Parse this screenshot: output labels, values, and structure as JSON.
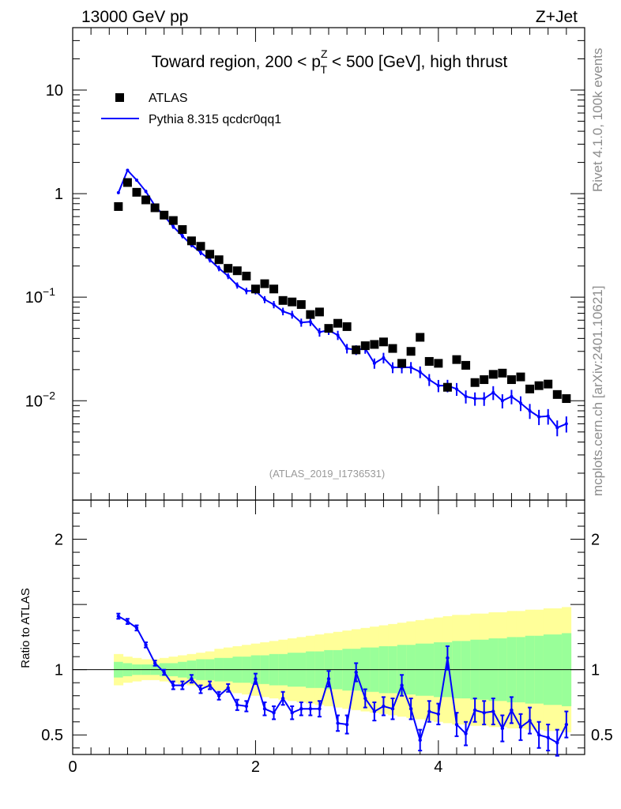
{
  "header": {
    "energy_label": "13000 GeV pp",
    "process_label": "Z+Jet"
  },
  "side_labels": {
    "rivet": "Rivet 4.1.0,  100k events",
    "mcplots": "mcplots.cern.ch [arXiv:2401.10621]"
  },
  "chart_data": {
    "type": "scatter",
    "title_pre": "Toward region, 200 < p",
    "title_sup": "Z",
    "title_sub": "T",
    "title_post": " < 500 [GeV], high thrust",
    "analysis_id": "(ATLAS_2019_I1736531)",
    "xlim": [
      0,
      5.6
    ],
    "ylim": [
      0.0011,
      40
    ],
    "yscale": "log",
    "y_ticks": [
      {
        "value": 10,
        "mant": "10",
        "exp": ""
      },
      {
        "value": 1,
        "mant": "1",
        "exp": ""
      },
      {
        "value": 0.1,
        "mant": "10",
        "exp": "−1"
      },
      {
        "value": 0.01,
        "mant": "10",
        "exp": "−2"
      }
    ],
    "x_ticks": [
      {
        "value": 0,
        "label": "0"
      },
      {
        "value": 2,
        "label": "2"
      },
      {
        "value": 4,
        "label": "4"
      }
    ],
    "legend": {
      "data_label": "ATLAS",
      "mc_label": "Pythia 8.315 qcdcr0qq1",
      "position": "top-left"
    },
    "x": [
      0.5,
      0.6,
      0.7,
      0.8,
      0.9,
      1.0,
      1.1,
      1.2,
      1.3,
      1.4,
      1.5,
      1.6,
      1.7,
      1.8,
      1.9,
      2.0,
      2.1,
      2.2,
      2.3,
      2.4,
      2.5,
      2.6,
      2.7,
      2.8,
      2.9,
      3.0,
      3.1,
      3.2,
      3.3,
      3.4,
      3.5,
      3.6,
      3.7,
      3.8,
      3.9,
      4.0,
      4.1,
      4.2,
      4.3,
      4.4,
      4.5,
      4.6,
      4.7,
      4.8,
      4.9,
      5.0,
      5.1,
      5.2,
      5.3,
      5.4
    ],
    "series": [
      {
        "name": "ATLAS",
        "color": "#000000",
        "values": [
          0.75,
          1.28,
          1.03,
          0.87,
          0.73,
          0.62,
          0.55,
          0.45,
          0.35,
          0.31,
          0.26,
          0.23,
          0.19,
          0.18,
          0.16,
          0.12,
          0.135,
          0.12,
          0.093,
          0.09,
          0.085,
          0.068,
          0.072,
          0.05,
          0.056,
          0.052,
          0.031,
          0.034,
          0.035,
          0.037,
          0.032,
          0.023,
          0.03,
          0.041,
          0.024,
          0.023,
          0.0135,
          0.025,
          0.022,
          0.015,
          0.016,
          0.018,
          0.0185,
          0.016,
          0.017,
          0.013,
          0.014,
          0.0145,
          0.0115,
          0.0105
        ]
      },
      {
        "name": "Pythia 8.315 qcdcr0qq1",
        "color": "#0000ff",
        "values": [
          1.02,
          1.68,
          1.35,
          1.05,
          0.76,
          0.61,
          0.48,
          0.39,
          0.32,
          0.27,
          0.23,
          0.19,
          0.16,
          0.13,
          0.115,
          0.115,
          0.095,
          0.085,
          0.073,
          0.068,
          0.057,
          0.058,
          0.046,
          0.048,
          0.043,
          0.032,
          0.031,
          0.032,
          0.023,
          0.026,
          0.021,
          0.021,
          0.021,
          0.019,
          0.016,
          0.014,
          0.014,
          0.013,
          0.011,
          0.0105,
          0.0105,
          0.012,
          0.01,
          0.011,
          0.0095,
          0.008,
          0.007,
          0.0071,
          0.0055,
          0.006
        ]
      }
    ],
    "ratio": {
      "ylabel": "Ratio to ATLAS",
      "ylim": [
        0.35,
        2.3
      ],
      "y_ticks": [
        {
          "value": 0.5,
          "label": "0.5"
        },
        {
          "value": 1,
          "label": "1"
        },
        {
          "value": 2,
          "label": "2"
        }
      ],
      "values": [
        1.41,
        1.37,
        1.32,
        1.19,
        1.05,
        0.98,
        0.88,
        0.88,
        0.93,
        0.85,
        0.88,
        0.8,
        0.86,
        0.73,
        0.72,
        0.93,
        0.7,
        0.67,
        0.78,
        0.67,
        0.7,
        0.7,
        0.7,
        0.93,
        0.59,
        0.58,
        0.98,
        0.78,
        0.68,
        0.72,
        0.7,
        0.88,
        0.7,
        0.46,
        0.68,
        0.66,
        1.09,
        0.58,
        0.51,
        0.69,
        0.67,
        0.68,
        0.55,
        0.69,
        0.56,
        0.61,
        0.5,
        0.48,
        0.44,
        0.58
      ],
      "errors": [
        0.02,
        0.02,
        0.02,
        0.02,
        0.02,
        0.02,
        0.03,
        0.03,
        0.03,
        0.03,
        0.03,
        0.03,
        0.03,
        0.04,
        0.04,
        0.04,
        0.05,
        0.05,
        0.05,
        0.05,
        0.05,
        0.05,
        0.06,
        0.06,
        0.06,
        0.07,
        0.07,
        0.07,
        0.07,
        0.07,
        0.08,
        0.08,
        0.08,
        0.08,
        0.08,
        0.08,
        0.09,
        0.09,
        0.09,
        0.09,
        0.09,
        0.1,
        0.1,
        0.1,
        0.1,
        0.1,
        0.1,
        0.1,
        0.1,
        0.1
      ],
      "band_inner": [
        0.06,
        0.05,
        0.04,
        0.04,
        0.04,
        0.05,
        0.05,
        0.06,
        0.07,
        0.08,
        0.08,
        0.09,
        0.09,
        0.1,
        0.1,
        0.11,
        0.11,
        0.12,
        0.12,
        0.13,
        0.13,
        0.14,
        0.14,
        0.15,
        0.15,
        0.16,
        0.16,
        0.17,
        0.17,
        0.18,
        0.18,
        0.19,
        0.19,
        0.2,
        0.2,
        0.21,
        0.21,
        0.22,
        0.22,
        0.23,
        0.23,
        0.24,
        0.24,
        0.25,
        0.25,
        0.26,
        0.26,
        0.27,
        0.27,
        0.28
      ],
      "band_outer": [
        0.12,
        0.1,
        0.09,
        0.08,
        0.08,
        0.09,
        0.1,
        0.11,
        0.12,
        0.13,
        0.14,
        0.16,
        0.17,
        0.18,
        0.19,
        0.2,
        0.21,
        0.22,
        0.23,
        0.24,
        0.25,
        0.26,
        0.27,
        0.28,
        0.29,
        0.3,
        0.31,
        0.32,
        0.33,
        0.34,
        0.35,
        0.36,
        0.37,
        0.38,
        0.39,
        0.4,
        0.41,
        0.42,
        0.42,
        0.43,
        0.43,
        0.44,
        0.44,
        0.45,
        0.45,
        0.46,
        0.46,
        0.47,
        0.47,
        0.48
      ]
    }
  }
}
